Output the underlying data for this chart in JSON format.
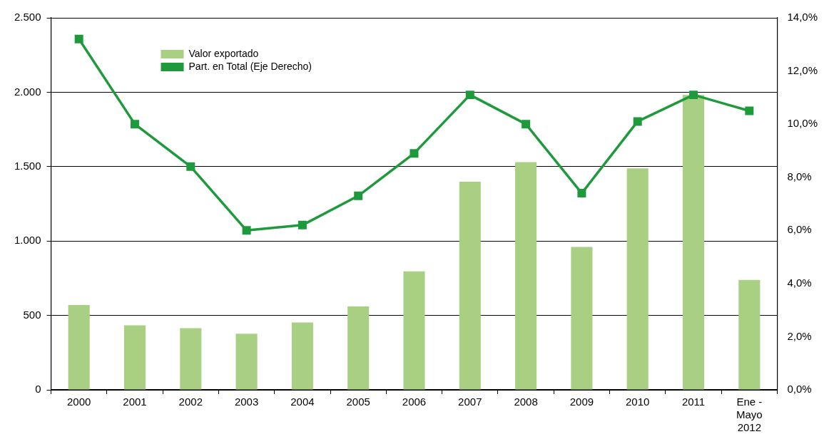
{
  "chart_data": {
    "type": "bar",
    "categories": [
      "2000",
      "2001",
      "2002",
      "2003",
      "2004",
      "2005",
      "2006",
      "2007",
      "2008",
      "2009",
      "2010",
      "2011",
      "Ene - Mayo 2012"
    ],
    "series": [
      {
        "name": "Valor exportado",
        "color": "#a9cf82",
        "values": [
          570,
          433,
          414,
          377,
          452,
          560,
          796,
          1398,
          1530,
          960,
          1488,
          1982,
          739
        ]
      },
      {
        "name": "Part. en Total (Eje Derecho)",
        "type": "line",
        "axis": "y2",
        "color": "#1e9a3c",
        "marker": "square",
        "values": [
          13.2,
          10.0,
          8.4,
          6.0,
          6.2,
          7.3,
          8.9,
          11.1,
          10.0,
          7.4,
          10.1,
          11.1,
          10.5
        ]
      }
    ],
    "ylim": [
      0,
      2500
    ],
    "yticks": [
      {
        "value": 0,
        "label": "0"
      },
      {
        "value": 500,
        "label": "500"
      },
      {
        "value": 1000,
        "label": "1.000"
      },
      {
        "value": 1500,
        "label": "1.500"
      },
      {
        "value": 2000,
        "label": "2.000"
      },
      {
        "value": 2500,
        "label": "2.500"
      }
    ],
    "y2lim": [
      0,
      14
    ],
    "y2ticks": [
      {
        "value": 0,
        "label": "0,0%"
      },
      {
        "value": 2,
        "label": "2,0%"
      },
      {
        "value": 4,
        "label": "4,0%"
      },
      {
        "value": 6,
        "label": "6,0%"
      },
      {
        "value": 8,
        "label": "8,0%"
      },
      {
        "value": 10,
        "label": "10,0%"
      },
      {
        "value": 12,
        "label": "12,0%"
      },
      {
        "value": 14,
        "label": "14,0%"
      }
    ],
    "grid": "y",
    "legend": "top left"
  }
}
